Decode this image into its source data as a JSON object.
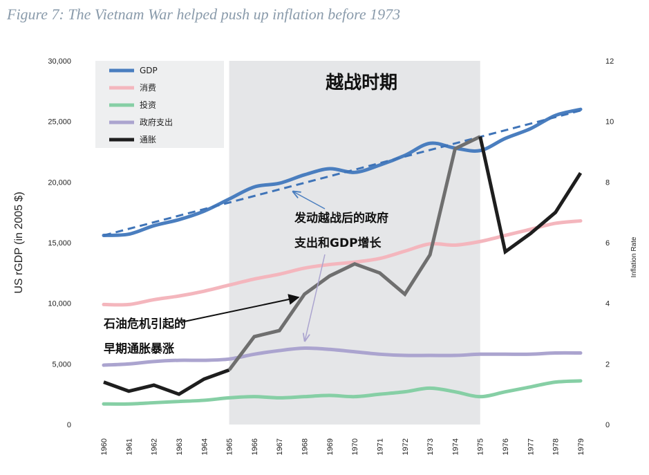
{
  "figure_title": "Figure 7: The Vietnam War helped push up inflation before 1973",
  "chart_data": {
    "type": "line",
    "x": [
      1960,
      1961,
      1962,
      1963,
      1964,
      1965,
      1966,
      1967,
      1968,
      1969,
      1970,
      1971,
      1972,
      1973,
      1974,
      1975,
      1976,
      1977,
      1978,
      1979
    ],
    "ylabel": "US rGDP (in 2005 $)",
    "y2label": "Inflation Rate",
    "ylim": [
      0,
      30000
    ],
    "y2lim": [
      0,
      12
    ],
    "yticks": [
      "0",
      "5,000",
      "10,000",
      "15,000",
      "20,000",
      "25,000",
      "30,000"
    ],
    "y2ticks": [
      "0",
      "2",
      "4",
      "6",
      "8",
      "10",
      "12"
    ],
    "legend_position": "top-left",
    "grid": false,
    "shaded_period": {
      "label": "越战时期",
      "start": 1965,
      "end": 1975
    },
    "series": [
      {
        "name": "GDP",
        "axis": "left",
        "color": "#4a7ebf",
        "values": [
          15600,
          15700,
          16400,
          16900,
          17600,
          18600,
          19600,
          19900,
          20600,
          21100,
          20800,
          21400,
          22200,
          23200,
          22800,
          22600,
          23600,
          24400,
          25500,
          26000
        ]
      },
      {
        "name": "消费",
        "axis": "left",
        "color": "#f4b6bd",
        "values": [
          9900,
          9900,
          10300,
          10600,
          11000,
          11500,
          12000,
          12400,
          12900,
          13200,
          13400,
          13700,
          14300,
          14900,
          14800,
          15100,
          15600,
          16100,
          16600,
          16800
        ]
      },
      {
        "name": "投资",
        "axis": "left",
        "color": "#86cfa5",
        "values": [
          1700,
          1700,
          1800,
          1900,
          2000,
          2200,
          2300,
          2200,
          2300,
          2400,
          2300,
          2500,
          2700,
          3000,
          2700,
          2300,
          2700,
          3100,
          3500,
          3600
        ]
      },
      {
        "name": "政府支出",
        "axis": "left",
        "color": "#aba4cf",
        "values": [
          4900,
          5000,
          5200,
          5300,
          5300,
          5400,
          5800,
          6100,
          6300,
          6200,
          6000,
          5800,
          5700,
          5700,
          5700,
          5800,
          5800,
          5800,
          5900,
          5900
        ]
      },
      {
        "name": "通胀",
        "axis": "right",
        "color": "#1e1e1e",
        "values": [
          1.4,
          1.1,
          1.3,
          1.0,
          1.5,
          1.8,
          2.9,
          3.1,
          4.3,
          4.9,
          5.3,
          5.0,
          4.3,
          5.6,
          9.1,
          9.5,
          5.7,
          6.3,
          7.0,
          8.3
        ]
      }
    ],
    "trendline": {
      "series": "GDP",
      "from": [
        1960,
        15600
      ],
      "to": [
        1979,
        25900
      ],
      "style": "dashed"
    },
    "annotations": [
      {
        "line1": "发动越战后的政府",
        "line2": "支出和GDP增长"
      },
      {
        "line1": "石油危机引起的",
        "line2": "早期通胀暴涨"
      }
    ]
  }
}
